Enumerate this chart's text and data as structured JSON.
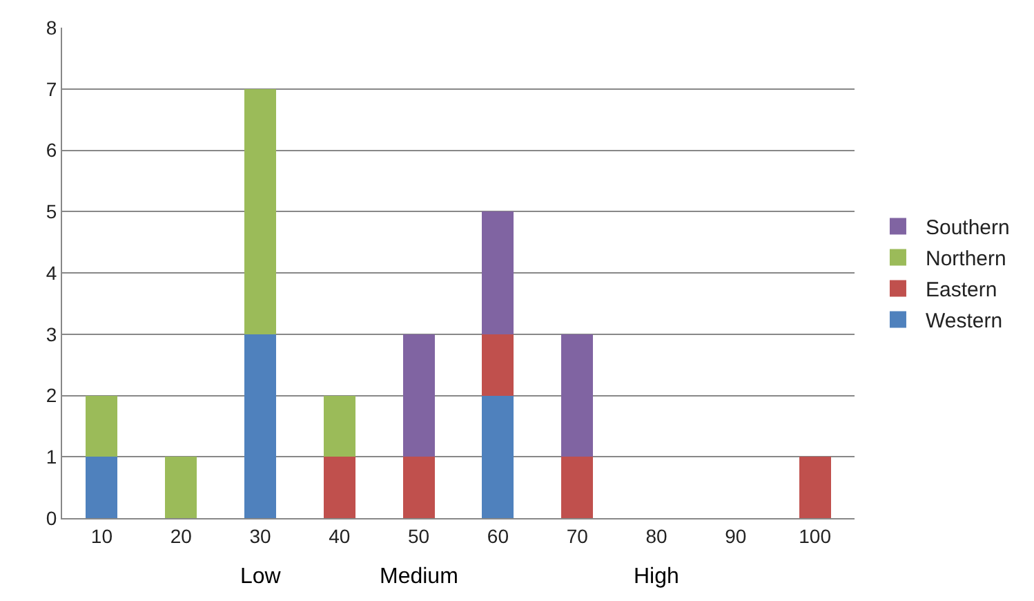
{
  "chart_data": {
    "type": "bar",
    "stacked": true,
    "categories": [
      "10",
      "20",
      "30",
      "40",
      "50",
      "60",
      "70",
      "80",
      "90",
      "100"
    ],
    "series": [
      {
        "name": "Western",
        "color": "#4f81bd",
        "values": [
          1,
          0,
          3,
          0,
          0,
          2,
          0,
          0,
          0,
          0
        ]
      },
      {
        "name": "Eastern",
        "color": "#c0504d",
        "values": [
          0,
          0,
          0,
          1,
          1,
          1,
          1,
          0,
          0,
          1
        ]
      },
      {
        "name": "Northern",
        "color": "#9bbb59",
        "values": [
          1,
          1,
          4,
          1,
          0,
          0,
          0,
          0,
          0,
          0
        ]
      },
      {
        "name": "Southern",
        "color": "#8064a2",
        "values": [
          0,
          0,
          0,
          0,
          2,
          2,
          2,
          0,
          0,
          0
        ]
      }
    ],
    "ylim": [
      0,
      8
    ],
    "yticks": [
      0,
      1,
      2,
      3,
      4,
      5,
      6,
      7,
      8
    ],
    "grid": "y",
    "legend": "right",
    "annotations": [
      "Low",
      "Medium",
      "High"
    ]
  }
}
